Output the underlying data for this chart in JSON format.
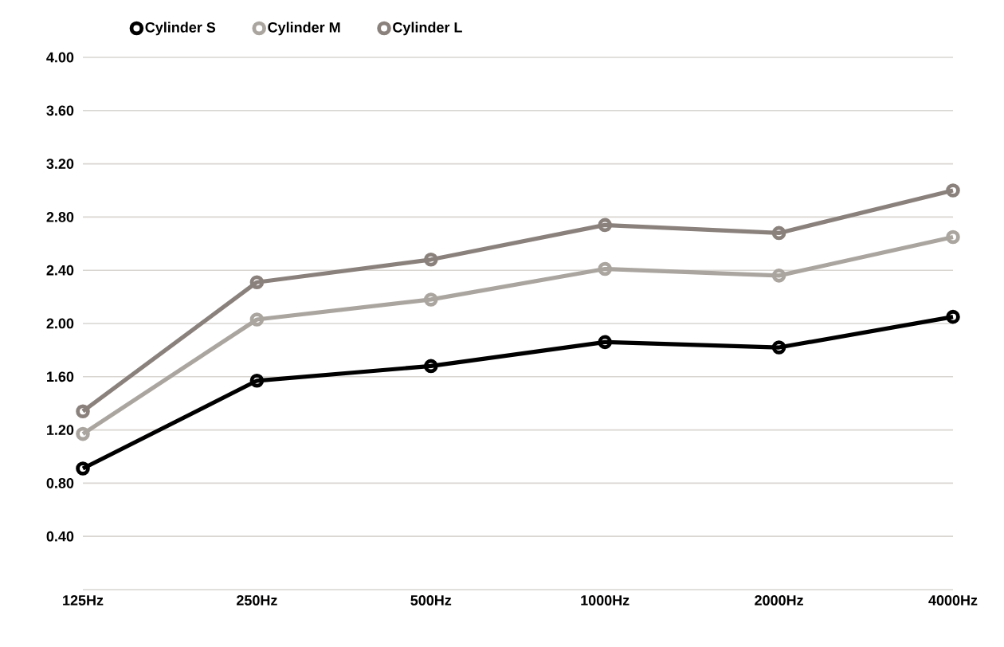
{
  "chart_data": {
    "type": "line",
    "categories": [
      "125Hz",
      "250Hz",
      "500Hz",
      "1000Hz",
      "2000Hz",
      "4000Hz"
    ],
    "series": [
      {
        "name": "Cylinder S",
        "color": "#000000",
        "values": [
          0.91,
          1.57,
          1.68,
          1.86,
          1.82,
          2.05
        ]
      },
      {
        "name": "Cylinder M",
        "color": "#aaa59f",
        "values": [
          1.17,
          2.03,
          2.18,
          2.41,
          2.36,
          2.65
        ]
      },
      {
        "name": "Cylinder L",
        "color": "#8a817c",
        "values": [
          1.34,
          2.31,
          2.48,
          2.74,
          2.68,
          3.0
        ]
      }
    ],
    "ylim": [
      0,
      4
    ],
    "yticks": [
      {
        "value": 0,
        "label": null
      },
      {
        "value": 0.4,
        "label": "0.40"
      },
      {
        "value": 0.8,
        "label": "0.80"
      },
      {
        "value": 1.2,
        "label": "1.20"
      },
      {
        "value": 1.6,
        "label": "1.60"
      },
      {
        "value": 2.0,
        "label": "2.00"
      },
      {
        "value": 2.4,
        "label": "2.40"
      },
      {
        "value": 2.8,
        "label": "2.80"
      },
      {
        "value": 3.2,
        "label": "3.20"
      },
      {
        "value": 3.6,
        "label": "3.60"
      },
      {
        "value": 4.0,
        "label": "4.00"
      }
    ],
    "grid": "y",
    "legend": "top",
    "marker": "circle",
    "line_style": "solid"
  }
}
